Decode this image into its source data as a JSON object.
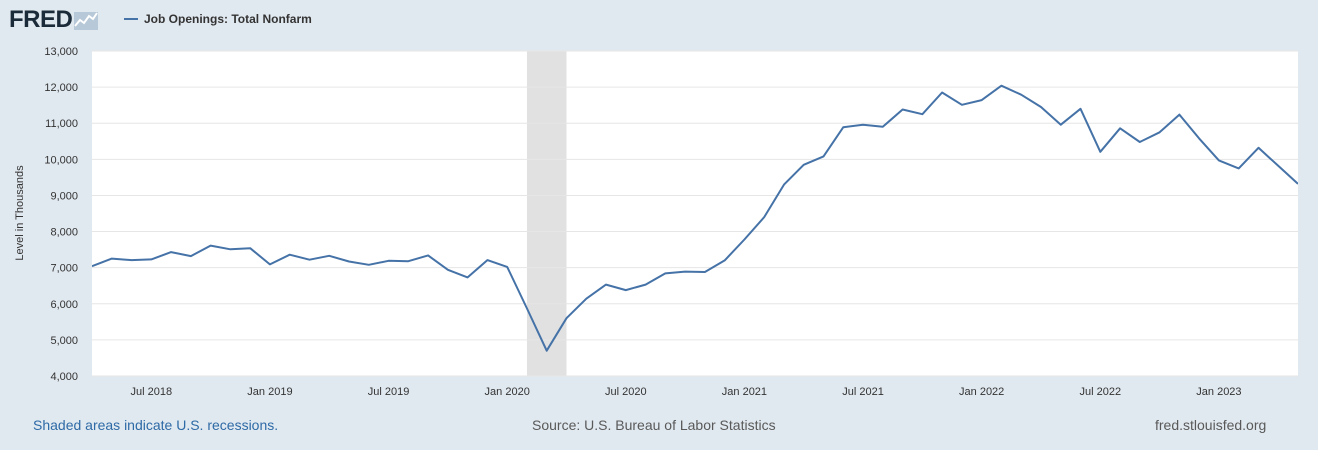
{
  "header": {
    "logo_text": "FRED",
    "legend_label": "Job Openings: Total Nonfarm",
    "series_color": "#4572a7"
  },
  "footer": {
    "recession_note": "Shaded areas indicate U.S. recessions.",
    "source": "Source: U.S. Bureau of Labor Statistics",
    "site": "fred.stlouisfed.org"
  },
  "colors": {
    "page_background": "#e1e9f0",
    "plot_background": "#ffffff",
    "gridline": "#e6e6e6",
    "recession_shade": "#e1e1e1",
    "series": "#4572a7"
  },
  "chart_data": {
    "type": "line",
    "title": "",
    "xlabel": "",
    "ylabel": "Level in Thousands",
    "ylim": [
      4000,
      13000
    ],
    "xlim": [
      "2018-04",
      "2023-05"
    ],
    "y_ticks": [
      "4,000",
      "5,000",
      "6,000",
      "7,000",
      "8,000",
      "9,000",
      "10,000",
      "11,000",
      "12,000",
      "13,000"
    ],
    "x_ticks": [
      {
        "date": "2018-07",
        "label": "Jul 2018"
      },
      {
        "date": "2019-01",
        "label": "Jan 2019"
      },
      {
        "date": "2019-07",
        "label": "Jul 2019"
      },
      {
        "date": "2020-01",
        "label": "Jan 2020"
      },
      {
        "date": "2020-07",
        "label": "Jul 2020"
      },
      {
        "date": "2021-01",
        "label": "Jan 2021"
      },
      {
        "date": "2021-07",
        "label": "Jul 2021"
      },
      {
        "date": "2022-01",
        "label": "Jan 2022"
      },
      {
        "date": "2022-07",
        "label": "Jul 2022"
      },
      {
        "date": "2023-01",
        "label": "Jan 2023"
      }
    ],
    "grid": true,
    "recession_periods": [
      {
        "start": "2020-02",
        "end": "2020-04"
      }
    ],
    "series": [
      {
        "name": "Job Openings: Total Nonfarm",
        "color": "#4572a7",
        "x": [
          "2018-04",
          "2018-05",
          "2018-06",
          "2018-07",
          "2018-08",
          "2018-09",
          "2018-10",
          "2018-11",
          "2018-12",
          "2019-01",
          "2019-02",
          "2019-03",
          "2019-04",
          "2019-05",
          "2019-06",
          "2019-07",
          "2019-08",
          "2019-09",
          "2019-10",
          "2019-11",
          "2019-12",
          "2020-01",
          "2020-02",
          "2020-03",
          "2020-04",
          "2020-05",
          "2020-06",
          "2020-07",
          "2020-08",
          "2020-09",
          "2020-10",
          "2020-11",
          "2020-12",
          "2021-01",
          "2021-02",
          "2021-03",
          "2021-04",
          "2021-05",
          "2021-06",
          "2021-07",
          "2021-08",
          "2021-09",
          "2021-10",
          "2021-11",
          "2021-12",
          "2022-01",
          "2022-02",
          "2022-03",
          "2022-04",
          "2022-05",
          "2022-06",
          "2022-07",
          "2022-08",
          "2022-09",
          "2022-10",
          "2022-11",
          "2022-12",
          "2023-01",
          "2023-02",
          "2023-03",
          "2023-04",
          "2023-05"
        ],
        "values": [
          7040,
          7250,
          7210,
          7230,
          7430,
          7320,
          7610,
          7510,
          7540,
          7090,
          7360,
          7220,
          7330,
          7170,
          7080,
          7190,
          7180,
          7340,
          6940,
          6730,
          7210,
          7020,
          5870,
          4700,
          5600,
          6140,
          6530,
          6380,
          6530,
          6840,
          6890,
          6880,
          7200,
          7780,
          8400,
          9300,
          9850,
          10080,
          10890,
          10960,
          10900,
          11380,
          11250,
          11850,
          11510,
          11640,
          12040,
          11790,
          11450,
          10960,
          11400,
          10210,
          10860,
          10480,
          10750,
          11240,
          10580,
          9970,
          9750,
          10320,
          9820,
          9320
        ]
      }
    ]
  }
}
